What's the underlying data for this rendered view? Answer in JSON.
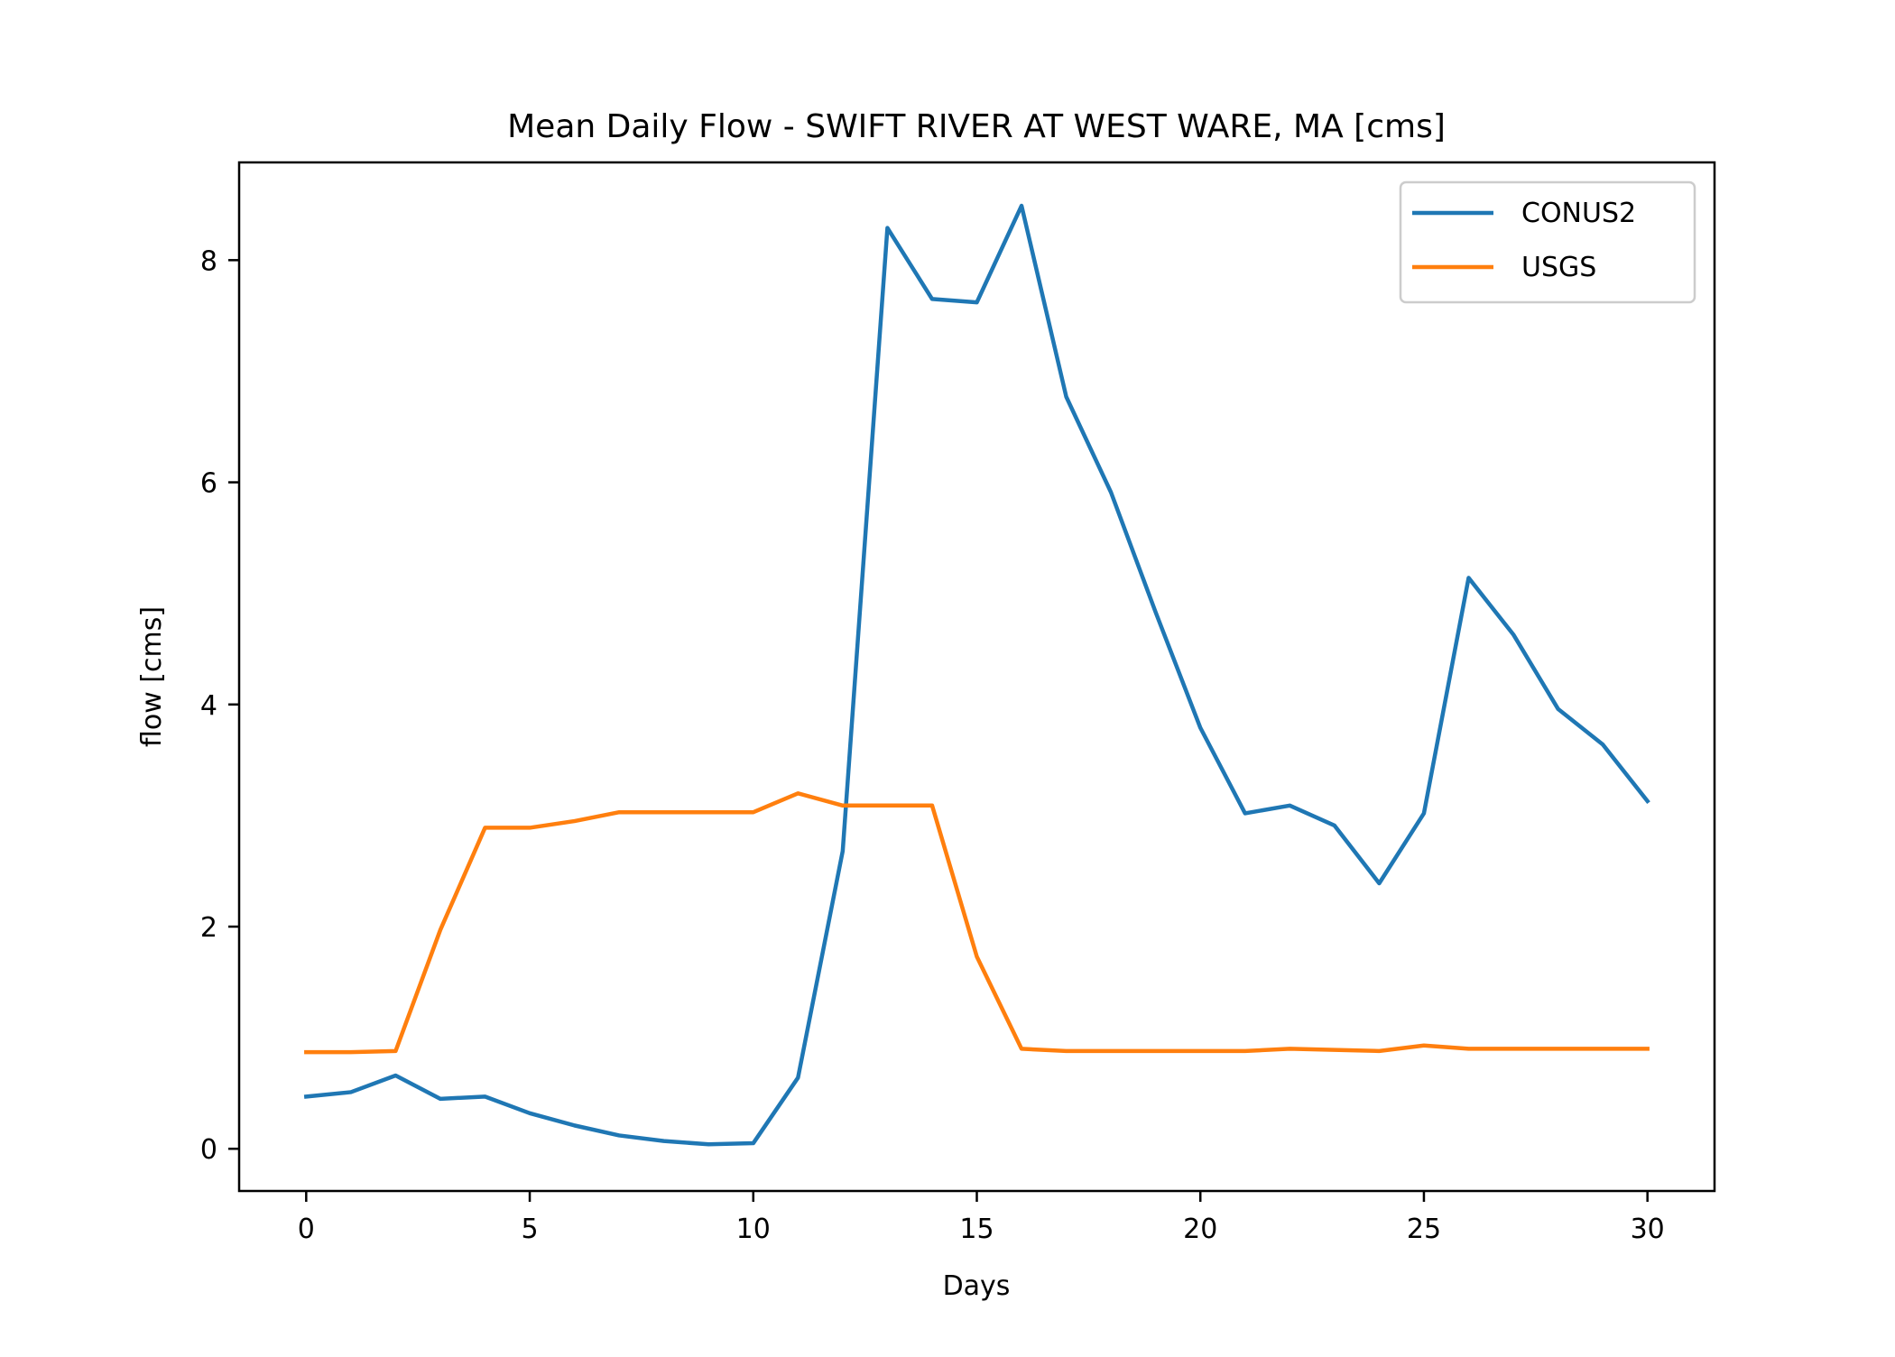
{
  "chart_data": {
    "type": "line",
    "title": "Mean Daily Flow - SWIFT RIVER AT WEST WARE, MA [cms]",
    "xlabel": "Days",
    "ylabel": "flow [cms]",
    "xlim": [
      -1.5,
      31.5
    ],
    "ylim": [
      -0.38,
      8.88
    ],
    "xticks": [
      0,
      5,
      10,
      15,
      20,
      25,
      30
    ],
    "yticks": [
      0,
      2,
      4,
      6,
      8
    ],
    "grid": false,
    "legend_position": "top-right",
    "x": [
      0,
      1,
      2,
      3,
      4,
      5,
      6,
      7,
      8,
      9,
      10,
      11,
      12,
      13,
      14,
      15,
      16,
      17,
      18,
      19,
      20,
      21,
      22,
      23,
      24,
      25,
      26,
      27,
      28,
      29,
      30
    ],
    "series": [
      {
        "name": "CONUS2",
        "color": "#1f77b4",
        "values": [
          0.47,
          0.51,
          0.66,
          0.45,
          0.47,
          0.32,
          0.21,
          0.12,
          0.07,
          0.04,
          0.05,
          0.64,
          2.68,
          8.29,
          7.65,
          7.62,
          8.49,
          6.77,
          5.91,
          4.83,
          3.79,
          3.02,
          3.09,
          2.91,
          2.39,
          3.02,
          5.14,
          4.63,
          3.96,
          3.64,
          3.13
        ]
      },
      {
        "name": "USGS",
        "color": "#ff7f0e",
        "values": [
          0.87,
          0.87,
          0.88,
          1.97,
          2.89,
          2.89,
          2.95,
          3.03,
          3.03,
          3.03,
          3.03,
          3.2,
          3.09,
          3.09,
          3.09,
          1.73,
          0.9,
          0.88,
          0.88,
          0.88,
          0.88,
          0.88,
          0.9,
          0.89,
          0.88,
          0.93,
          0.9,
          0.9,
          0.9,
          0.9,
          0.9
        ]
      }
    ]
  }
}
